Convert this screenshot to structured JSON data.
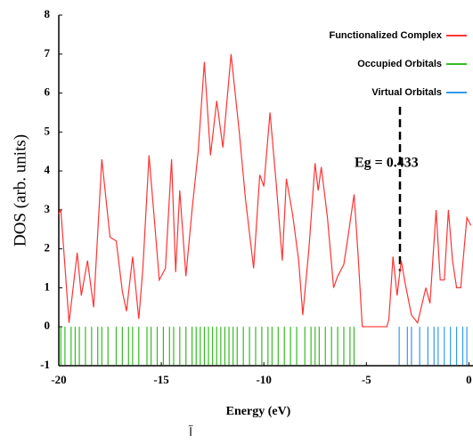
{
  "chart_data": {
    "type": "line",
    "xlabel": "Energy (eV)",
    "ylabel": "DOS (arb. units)",
    "annotation": "Eg = 0.433",
    "caption": "آ",
    "xlim": [
      -20,
      0.2
    ],
    "ylim": [
      -1,
      8
    ],
    "xticks": [
      -20,
      -15,
      -10,
      -5,
      0
    ],
    "yticks": [
      -1,
      0,
      1,
      2,
      3,
      4,
      5,
      6,
      7,
      8
    ],
    "legend": "top-right",
    "series": [
      {
        "name": "Functionalized Complex",
        "color": "#ff3333",
        "x": [
          -20,
          -19.9,
          -19.5,
          -19.1,
          -18.9,
          -18.6,
          -18.3,
          -17.9,
          -17.5,
          -17.2,
          -16.9,
          -16.7,
          -16.4,
          -16.1,
          -15.9,
          -15.6,
          -15.3,
          -15.1,
          -14.8,
          -14.5,
          -14.3,
          -14.1,
          -13.8,
          -13.5,
          -13.2,
          -12.9,
          -12.6,
          -12.3,
          -12.0,
          -11.6,
          -11.2,
          -10.9,
          -10.5,
          -10.2,
          -10.0,
          -9.7,
          -9.4,
          -9.1,
          -8.9,
          -8.6,
          -8.3,
          -8.1,
          -7.8,
          -7.5,
          -7.35,
          -7.2,
          -6.9,
          -6.6,
          -6.4,
          -6.1,
          -5.9,
          -5.6,
          -5.4,
          -5.2,
          -4.0,
          -3.9,
          -3.7,
          -3.5,
          -3.3,
          -3.1,
          -2.8,
          -2.5,
          -2.1,
          -1.9,
          -1.6,
          -1.4,
          -1.2,
          -1.0,
          -0.8,
          -0.6,
          -0.4,
          -0.1,
          0.1
        ],
        "values": [
          2.9,
          3.0,
          0.1,
          1.9,
          0.8,
          1.7,
          0.5,
          4.3,
          2.3,
          2.2,
          0.9,
          0.4,
          1.8,
          0.2,
          1.5,
          4.4,
          2.5,
          1.2,
          1.5,
          4.3,
          1.4,
          3.5,
          1.3,
          3.0,
          4.5,
          6.8,
          4.4,
          5.8,
          4.6,
          7.0,
          5.0,
          3.3,
          1.5,
          3.9,
          3.6,
          5.5,
          3.7,
          1.7,
          3.8,
          2.9,
          1.7,
          0.3,
          2.0,
          4.2,
          3.5,
          4.1,
          2.8,
          1.0,
          1.3,
          1.6,
          2.3,
          3.4,
          1.8,
          0.0,
          0.0,
          0.2,
          1.8,
          0.8,
          1.7,
          1.1,
          0.3,
          0.1,
          1.0,
          0.6,
          3.0,
          1.2,
          1.2,
          3.0,
          1.7,
          1.0,
          1.0,
          2.8,
          2.6
        ]
      },
      {
        "name": "Occupied Orbitals",
        "color": "#33bb22",
        "energies": [
          -19.9,
          -19.7,
          -19.4,
          -19.2,
          -19.0,
          -18.7,
          -18.4,
          -18.1,
          -17.9,
          -17.6,
          -17.2,
          -16.9,
          -16.6,
          -16.4,
          -16.1,
          -15.7,
          -15.5,
          -15.2,
          -14.9,
          -14.6,
          -14.4,
          -14.1,
          -13.8,
          -13.5,
          -13.3,
          -13.1,
          -12.9,
          -12.7,
          -12.5,
          -12.3,
          -12.1,
          -11.9,
          -11.7,
          -11.5,
          -11.3,
          -11.0,
          -10.7,
          -10.4,
          -10.1,
          -9.8,
          -9.6,
          -9.3,
          -9.0,
          -8.7,
          -8.4,
          -8.0,
          -7.7,
          -7.5,
          -7.3,
          -7.0,
          -6.7,
          -6.4,
          -6.1,
          -5.8,
          -5.6
        ]
      },
      {
        "name": "Virtual Orbitals",
        "color": "#3399ee",
        "energies": [
          -3.4,
          -3.0,
          -2.8,
          -2.4,
          -2.0,
          -1.7,
          -1.5,
          -1.2,
          -0.9,
          -0.6,
          -0.3,
          -0.1
        ]
      }
    ]
  }
}
